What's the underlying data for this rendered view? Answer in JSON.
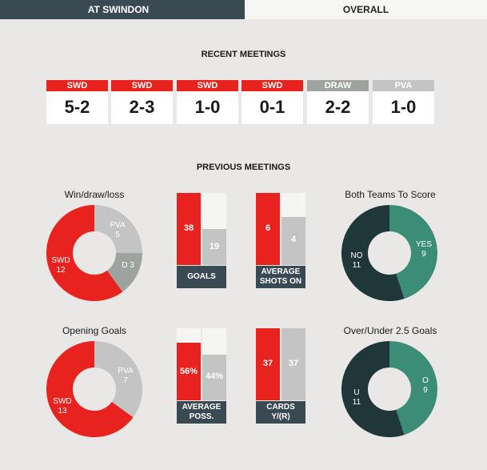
{
  "tabs": {
    "left": "AT SWINDON",
    "right": "OVERALL"
  },
  "colors": {
    "red": "#e8231f",
    "grey": "#c4c4c4",
    "dark_grey": "#9ea3a0",
    "teal": "#3b8d77",
    "dark_teal": "#20373a",
    "panel_dark": "#3a4a52"
  },
  "recent": {
    "heading": "RECENT MEETINGS",
    "matches": [
      {
        "label": "SWD",
        "score": "5-2",
        "color": "#e8231f"
      },
      {
        "label": "SWD",
        "score": "2-3",
        "color": "#e8231f"
      },
      {
        "label": "SWD",
        "score": "1-0",
        "color": "#e8231f"
      },
      {
        "label": "SWD",
        "score": "0-1",
        "color": "#e8231f"
      },
      {
        "label": "DRAW",
        "score": "2-2",
        "color": "#9ea3a0"
      },
      {
        "label": "PVA",
        "score": "1-0",
        "color": "#c4c4c4"
      }
    ]
  },
  "previous": {
    "heading": "PREVIOUS MEETINGS",
    "wdl": {
      "title": "Win/draw/loss",
      "swd_label": "SWD",
      "swd": 12,
      "pva_label": "PVA",
      "pva": 5,
      "draw_label": "D",
      "draw": 3
    },
    "goals": {
      "home": 38,
      "away": 19,
      "caption": "GOALS"
    },
    "shots": {
      "home": 6,
      "away": 4,
      "caption1": "AVERAGE",
      "caption2": "SHOTS ON"
    },
    "btts": {
      "title": "Both Teams To Score",
      "no_label": "NO",
      "no": 11,
      "yes_label": "YES",
      "yes": 9
    },
    "opening": {
      "title": "Opening Goals",
      "swd_label": "SWD",
      "swd": 13,
      "pva_label": "PVA",
      "pva": 7
    },
    "possession": {
      "home": 56,
      "away": 44,
      "home_text": "56%",
      "away_text": "44%",
      "caption1": "AVERAGE",
      "caption2": "POSS."
    },
    "cards": {
      "home": 37,
      "away": 37,
      "caption1": "CARDS",
      "caption2": "Y/(R)"
    },
    "ou": {
      "title": "Over/Under 2.5 Goals",
      "u_label": "U",
      "u": 11,
      "o_label": "O",
      "o": 9
    }
  }
}
